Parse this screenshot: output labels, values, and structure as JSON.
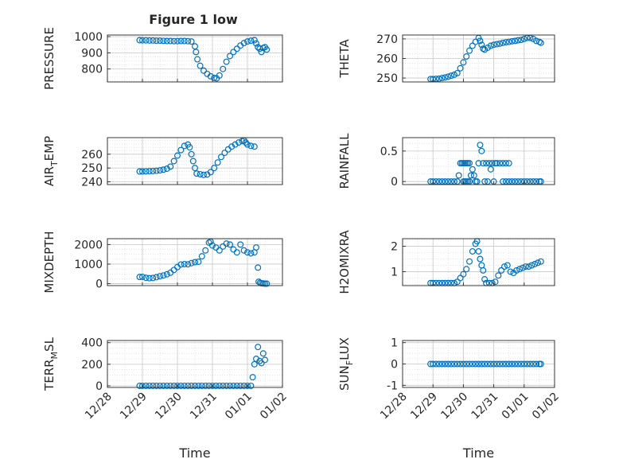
{
  "figure": {
    "title": "Figure 1 low",
    "xlabel": "Time",
    "marker_color": "#0072BD",
    "x_tick_labels": [
      "12/28",
      "12/29",
      "12/30",
      "12/31",
      "01/01",
      "01/02"
    ]
  },
  "chart_data": [
    {
      "type": "scatter",
      "ylabel": "PRESSURE",
      "title": "Figure 1 low",
      "xlim": [
        0,
        5
      ],
      "ylim": [
        720,
        1010
      ],
      "yticks": [
        800,
        900,
        1000
      ],
      "grid": true,
      "points": [
        [
          0.92,
          978
        ],
        [
          1.0,
          977
        ],
        [
          1.1,
          977
        ],
        [
          1.2,
          976
        ],
        [
          1.3,
          976
        ],
        [
          1.4,
          975
        ],
        [
          1.5,
          975
        ],
        [
          1.6,
          974
        ],
        [
          1.7,
          973
        ],
        [
          1.8,
          973
        ],
        [
          1.9,
          972
        ],
        [
          2.0,
          972
        ],
        [
          2.1,
          973
        ],
        [
          2.2,
          973
        ],
        [
          2.3,
          972
        ],
        [
          2.4,
          970
        ],
        [
          2.5,
          940
        ],
        [
          2.53,
          905
        ],
        [
          2.57,
          860
        ],
        [
          2.65,
          820
        ],
        [
          2.75,
          790
        ],
        [
          2.85,
          770
        ],
        [
          2.95,
          755
        ],
        [
          3.05,
          745
        ],
        [
          3.12,
          742
        ],
        [
          3.2,
          760
        ],
        [
          3.3,
          800
        ],
        [
          3.4,
          845
        ],
        [
          3.5,
          880
        ],
        [
          3.6,
          905
        ],
        [
          3.7,
          925
        ],
        [
          3.8,
          945
        ],
        [
          3.9,
          960
        ],
        [
          4.0,
          970
        ],
        [
          4.1,
          975
        ],
        [
          4.2,
          978
        ],
        [
          4.25,
          958
        ],
        [
          4.3,
          935
        ],
        [
          4.35,
          925
        ],
        [
          4.4,
          905
        ],
        [
          4.45,
          930
        ],
        [
          4.5,
          935
        ],
        [
          4.55,
          920
        ]
      ]
    },
    {
      "type": "scatter",
      "ylabel": "THETA",
      "xlim": [
        0,
        5
      ],
      "ylim": [
        248,
        272
      ],
      "yticks": [
        250,
        260,
        270
      ],
      "grid": true,
      "points": [
        [
          0.92,
          249.5
        ],
        [
          1.0,
          249.5
        ],
        [
          1.1,
          249.6
        ],
        [
          1.2,
          249.7
        ],
        [
          1.3,
          250
        ],
        [
          1.4,
          250.3
        ],
        [
          1.5,
          250.7
        ],
        [
          1.6,
          251.2
        ],
        [
          1.7,
          251.7
        ],
        [
          1.8,
          252.5
        ],
        [
          1.9,
          255
        ],
        [
          2.0,
          258
        ],
        [
          2.1,
          261
        ],
        [
          2.2,
          264
        ],
        [
          2.3,
          266.5
        ],
        [
          2.4,
          268.5
        ],
        [
          2.5,
          270.5
        ],
        [
          2.55,
          269
        ],
        [
          2.6,
          267
        ],
        [
          2.65,
          265
        ],
        [
          2.7,
          264.5
        ],
        [
          2.8,
          265.5
        ],
        [
          2.9,
          266.5
        ],
        [
          3.0,
          267
        ],
        [
          3.1,
          267.3
        ],
        [
          3.2,
          267.6
        ],
        [
          3.3,
          268
        ],
        [
          3.4,
          268.3
        ],
        [
          3.5,
          268.5
        ],
        [
          3.6,
          268.8
        ],
        [
          3.7,
          269
        ],
        [
          3.8,
          269.3
        ],
        [
          3.9,
          269.5
        ],
        [
          4.0,
          270
        ],
        [
          4.1,
          270.5
        ],
        [
          4.2,
          270.5
        ],
        [
          4.3,
          270
        ],
        [
          4.4,
          269
        ],
        [
          4.5,
          268.5
        ],
        [
          4.55,
          268
        ]
      ]
    },
    {
      "type": "scatter",
      "ylabel": "AIR_TEMP",
      "xlim": [
        0,
        5
      ],
      "ylim": [
        238,
        272
      ],
      "yticks": [
        240,
        250,
        260
      ],
      "grid": true,
      "points": [
        [
          0.92,
          247.5
        ],
        [
          1.0,
          247.5
        ],
        [
          1.1,
          247.6
        ],
        [
          1.2,
          247.7
        ],
        [
          1.3,
          247.8
        ],
        [
          1.4,
          248
        ],
        [
          1.5,
          248.3
        ],
        [
          1.6,
          248.8
        ],
        [
          1.7,
          249.5
        ],
        [
          1.8,
          251
        ],
        [
          1.9,
          255
        ],
        [
          2.0,
          259
        ],
        [
          2.1,
          263
        ],
        [
          2.2,
          266
        ],
        [
          2.3,
          267
        ],
        [
          2.35,
          265
        ],
        [
          2.4,
          260
        ],
        [
          2.45,
          255
        ],
        [
          2.5,
          250
        ],
        [
          2.55,
          246
        ],
        [
          2.65,
          245.5
        ],
        [
          2.75,
          245
        ],
        [
          2.85,
          245.3
        ],
        [
          2.95,
          247
        ],
        [
          3.05,
          250
        ],
        [
          3.15,
          254
        ],
        [
          3.25,
          258
        ],
        [
          3.35,
          261
        ],
        [
          3.45,
          263.5
        ],
        [
          3.55,
          265.5
        ],
        [
          3.65,
          267
        ],
        [
          3.75,
          268.5
        ],
        [
          3.85,
          269.5
        ],
        [
          3.9,
          270
        ],
        [
          3.95,
          268.5
        ],
        [
          4.0,
          267
        ],
        [
          4.1,
          266
        ],
        [
          4.2,
          265.5
        ]
      ]
    },
    {
      "type": "scatter",
      "ylabel": "RAINFALL",
      "xlim": [
        0,
        5
      ],
      "ylim": [
        -0.05,
        0.72
      ],
      "yticks": [
        0,
        0.5
      ],
      "grid": true,
      "points": [
        [
          0.92,
          0
        ],
        [
          1.0,
          0
        ],
        [
          1.1,
          0
        ],
        [
          1.2,
          0
        ],
        [
          1.3,
          0
        ],
        [
          1.4,
          0
        ],
        [
          1.5,
          0
        ],
        [
          1.6,
          0
        ],
        [
          1.7,
          0
        ],
        [
          1.8,
          0
        ],
        [
          1.85,
          0.1
        ],
        [
          1.9,
          0.3
        ],
        [
          1.95,
          0.3
        ],
        [
          2.0,
          0.3
        ],
        [
          2.05,
          0.3
        ],
        [
          2.1,
          0.3
        ],
        [
          2.15,
          0.3
        ],
        [
          2.2,
          0.3
        ],
        [
          2.0,
          0
        ],
        [
          2.05,
          0
        ],
        [
          2.1,
          0
        ],
        [
          2.15,
          0
        ],
        [
          2.2,
          0
        ],
        [
          2.25,
          0.1
        ],
        [
          2.3,
          0.2
        ],
        [
          2.35,
          0.1
        ],
        [
          2.4,
          0
        ],
        [
          2.45,
          0
        ],
        [
          2.5,
          0.3
        ],
        [
          2.55,
          0.6
        ],
        [
          2.6,
          0.5
        ],
        [
          2.65,
          0.3
        ],
        [
          2.7,
          0
        ],
        [
          2.75,
          0.3
        ],
        [
          2.8,
          0
        ],
        [
          2.85,
          0.3
        ],
        [
          2.9,
          0.2
        ],
        [
          2.95,
          0.3
        ],
        [
          3.0,
          0
        ],
        [
          3.05,
          0.3
        ],
        [
          3.1,
          0.3
        ],
        [
          3.2,
          0.3
        ],
        [
          3.3,
          0.3
        ],
        [
          3.4,
          0.3
        ],
        [
          3.5,
          0.3
        ],
        [
          3.3,
          0
        ],
        [
          3.4,
          0
        ],
        [
          3.5,
          0
        ],
        [
          3.6,
          0
        ],
        [
          3.7,
          0
        ],
        [
          3.8,
          0
        ],
        [
          3.9,
          0
        ],
        [
          4.0,
          0
        ],
        [
          4.1,
          0
        ],
        [
          4.2,
          0
        ],
        [
          4.3,
          0
        ],
        [
          4.4,
          0
        ],
        [
          4.5,
          0
        ],
        [
          4.55,
          0
        ]
      ]
    },
    {
      "type": "scatter",
      "ylabel": "MIXDEPTH",
      "xlim": [
        0,
        5
      ],
      "ylim": [
        -100,
        2300
      ],
      "yticks": [
        0,
        1000,
        2000
      ],
      "grid": true,
      "points": [
        [
          0.92,
          340
        ],
        [
          1.0,
          350
        ],
        [
          1.1,
          300
        ],
        [
          1.2,
          280
        ],
        [
          1.3,
          290
        ],
        [
          1.4,
          330
        ],
        [
          1.5,
          380
        ],
        [
          1.6,
          420
        ],
        [
          1.7,
          480
        ],
        [
          1.8,
          560
        ],
        [
          1.9,
          700
        ],
        [
          2.0,
          850
        ],
        [
          2.1,
          980
        ],
        [
          2.2,
          1000
        ],
        [
          2.3,
          990
        ],
        [
          2.4,
          1050
        ],
        [
          2.5,
          1100
        ],
        [
          2.6,
          1120
        ],
        [
          2.7,
          1400
        ],
        [
          2.8,
          1700
        ],
        [
          2.9,
          2100
        ],
        [
          2.95,
          2150
        ],
        [
          3.0,
          1950
        ],
        [
          3.1,
          1850
        ],
        [
          3.2,
          1700
        ],
        [
          3.3,
          1900
        ],
        [
          3.4,
          2050
        ],
        [
          3.5,
          2000
        ],
        [
          3.6,
          1750
        ],
        [
          3.7,
          1600
        ],
        [
          3.8,
          2000
        ],
        [
          3.9,
          1700
        ],
        [
          4.0,
          1600
        ],
        [
          4.1,
          1550
        ],
        [
          4.2,
          1600
        ],
        [
          4.25,
          1850
        ],
        [
          4.3,
          820
        ],
        [
          4.32,
          100
        ],
        [
          4.36,
          50
        ],
        [
          4.4,
          20
        ],
        [
          4.45,
          10
        ],
        [
          4.5,
          0
        ],
        [
          4.55,
          0
        ]
      ]
    },
    {
      "type": "scatter",
      "ylabel": "H2OMIXRA",
      "xlim": [
        0,
        5
      ],
      "ylim": [
        0.45,
        2.3
      ],
      "yticks": [
        1,
        2
      ],
      "grid": true,
      "points": [
        [
          0.92,
          0.55
        ],
        [
          1.0,
          0.55
        ],
        [
          1.1,
          0.55
        ],
        [
          1.2,
          0.55
        ],
        [
          1.3,
          0.55
        ],
        [
          1.4,
          0.55
        ],
        [
          1.5,
          0.55
        ],
        [
          1.6,
          0.55
        ],
        [
          1.7,
          0.55
        ],
        [
          1.8,
          0.6
        ],
        [
          1.9,
          0.75
        ],
        [
          2.0,
          0.9
        ],
        [
          2.1,
          1.1
        ],
        [
          2.2,
          1.4
        ],
        [
          2.3,
          1.8
        ],
        [
          2.4,
          2.1
        ],
        [
          2.45,
          2.2
        ],
        [
          2.5,
          1.8
        ],
        [
          2.55,
          1.5
        ],
        [
          2.6,
          1.25
        ],
        [
          2.65,
          1.05
        ],
        [
          2.7,
          0.7
        ],
        [
          2.75,
          0.55
        ],
        [
          2.85,
          0.55
        ],
        [
          2.95,
          0.55
        ],
        [
          3.05,
          0.6
        ],
        [
          3.15,
          0.85
        ],
        [
          3.25,
          1.05
        ],
        [
          3.35,
          1.2
        ],
        [
          3.45,
          1.25
        ],
        [
          3.55,
          1.0
        ],
        [
          3.65,
          0.95
        ],
        [
          3.75,
          1.05
        ],
        [
          3.85,
          1.1
        ],
        [
          3.95,
          1.15
        ],
        [
          4.05,
          1.2
        ],
        [
          4.15,
          1.2
        ],
        [
          4.25,
          1.25
        ],
        [
          4.35,
          1.3
        ],
        [
          4.45,
          1.35
        ],
        [
          4.55,
          1.4
        ]
      ]
    },
    {
      "type": "scatter",
      "ylabel": "TERR_MSL",
      "xlim": [
        0,
        5
      ],
      "ylim": [
        -15,
        420
      ],
      "yticks": [
        0,
        200,
        400
      ],
      "grid": true,
      "points": [
        [
          0.92,
          0
        ],
        [
          1.0,
          0
        ],
        [
          1.1,
          0
        ],
        [
          1.2,
          0
        ],
        [
          1.3,
          0
        ],
        [
          1.4,
          0
        ],
        [
          1.5,
          0
        ],
        [
          1.6,
          0
        ],
        [
          1.7,
          0
        ],
        [
          1.8,
          0
        ],
        [
          1.9,
          0
        ],
        [
          2.0,
          0
        ],
        [
          2.1,
          0
        ],
        [
          2.2,
          0
        ],
        [
          2.3,
          0
        ],
        [
          2.4,
          0
        ],
        [
          2.5,
          0
        ],
        [
          2.6,
          0
        ],
        [
          2.7,
          0
        ],
        [
          2.8,
          0
        ],
        [
          2.9,
          0
        ],
        [
          3.0,
          0
        ],
        [
          3.1,
          0
        ],
        [
          3.2,
          0
        ],
        [
          3.3,
          0
        ],
        [
          3.4,
          0
        ],
        [
          3.5,
          0
        ],
        [
          3.6,
          0
        ],
        [
          3.7,
          0
        ],
        [
          3.8,
          0
        ],
        [
          3.9,
          0
        ],
        [
          4.0,
          0
        ],
        [
          4.1,
          0
        ],
        [
          4.15,
          80
        ],
        [
          4.2,
          200
        ],
        [
          4.25,
          250
        ],
        [
          4.3,
          360
        ],
        [
          4.35,
          230
        ],
        [
          4.4,
          210
        ],
        [
          4.45,
          300
        ],
        [
          4.5,
          240
        ]
      ]
    },
    {
      "type": "scatter",
      "ylabel": "SUN_FLUX",
      "xlim": [
        0,
        5
      ],
      "ylim": [
        -1.1,
        1.1
      ],
      "yticks": [
        -1,
        0,
        1
      ],
      "grid": true,
      "points": [
        [
          0.92,
          0
        ],
        [
          1.0,
          0
        ],
        [
          1.1,
          0
        ],
        [
          1.2,
          0
        ],
        [
          1.3,
          0
        ],
        [
          1.4,
          0
        ],
        [
          1.5,
          0
        ],
        [
          1.6,
          0
        ],
        [
          1.7,
          0
        ],
        [
          1.8,
          0
        ],
        [
          1.9,
          0
        ],
        [
          2.0,
          0
        ],
        [
          2.1,
          0
        ],
        [
          2.2,
          0
        ],
        [
          2.3,
          0
        ],
        [
          2.4,
          0
        ],
        [
          2.5,
          0
        ],
        [
          2.6,
          0
        ],
        [
          2.7,
          0
        ],
        [
          2.8,
          0
        ],
        [
          2.9,
          0
        ],
        [
          3.0,
          0
        ],
        [
          3.1,
          0
        ],
        [
          3.2,
          0
        ],
        [
          3.3,
          0
        ],
        [
          3.4,
          0
        ],
        [
          3.5,
          0
        ],
        [
          3.6,
          0
        ],
        [
          3.7,
          0
        ],
        [
          3.8,
          0
        ],
        [
          3.9,
          0
        ],
        [
          4.0,
          0
        ],
        [
          4.1,
          0
        ],
        [
          4.2,
          0
        ],
        [
          4.3,
          0
        ],
        [
          4.4,
          0
        ],
        [
          4.5,
          0
        ],
        [
          4.55,
          0
        ]
      ]
    }
  ]
}
